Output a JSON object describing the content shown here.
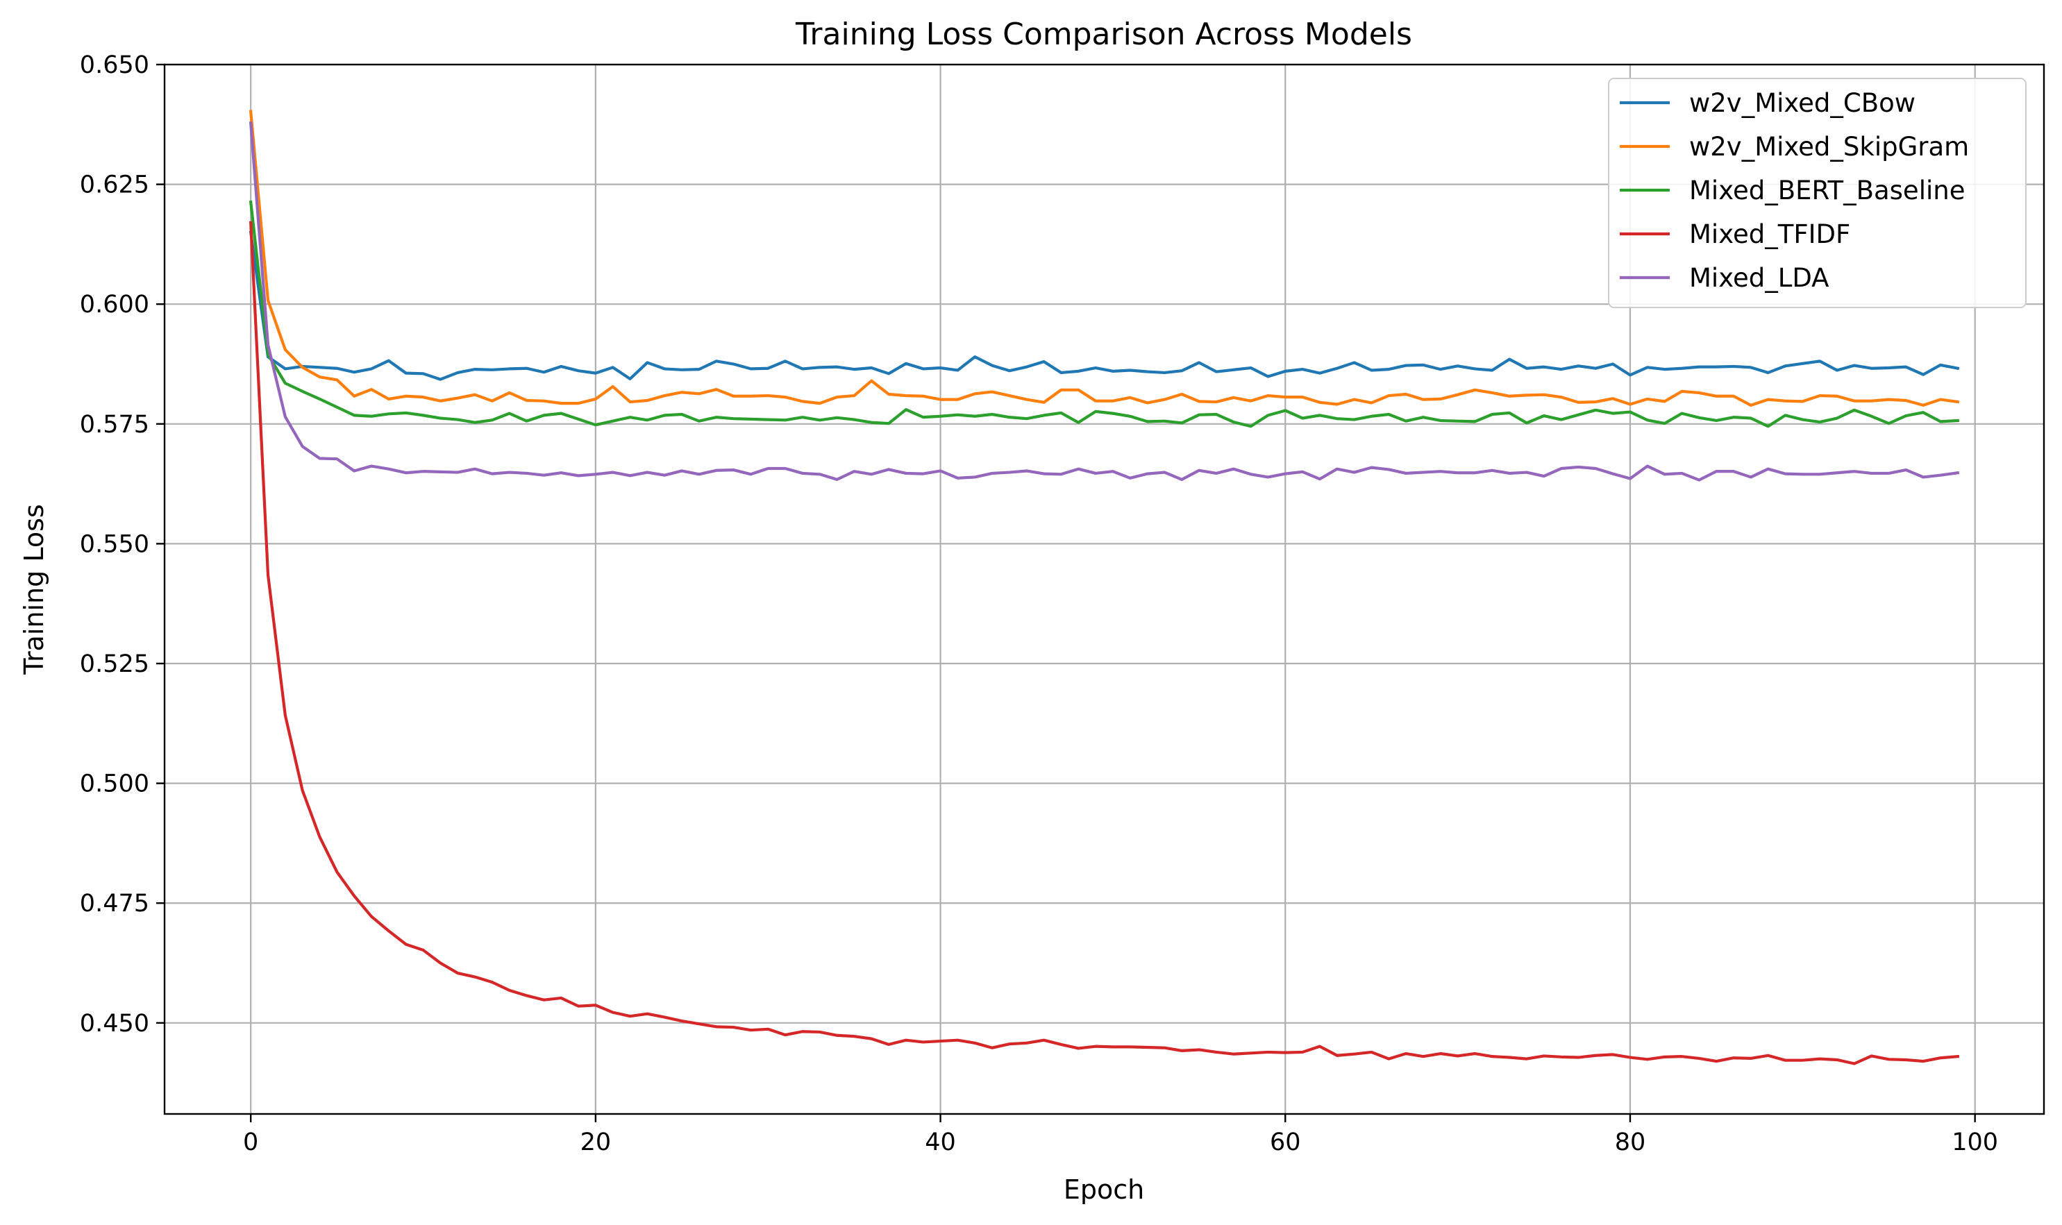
{
  "chart_data": {
    "type": "line",
    "title": "Training Loss Comparison Across Models",
    "xlabel": "Epoch",
    "ylabel": "Training Loss",
    "xlim": [
      -5,
      104
    ],
    "ylim": [
      0.431,
      0.65
    ],
    "xticks": [
      0,
      20,
      40,
      60,
      80,
      100
    ],
    "xtick_labels": [
      "0",
      "20",
      "40",
      "60",
      "80",
      "100"
    ],
    "yticks": [
      0.45,
      0.475,
      0.5,
      0.525,
      0.55,
      0.575,
      0.6,
      0.625,
      0.65
    ],
    "ytick_labels": [
      "0.450",
      "0.475",
      "0.500",
      "0.525",
      "0.550",
      "0.575",
      "0.600",
      "0.625",
      "0.650"
    ],
    "grid": true,
    "legend_position": "top-right",
    "series": [
      {
        "name": "w2v_Mixed_CBow",
        "color": "#1f77b4",
        "values": [
          0.615,
          0.589,
          0.5865,
          0.587,
          0.5868,
          0.5866,
          0.5858,
          0.5865,
          0.5882,
          0.5856,
          0.5855,
          0.5843,
          0.5857,
          0.5864,
          0.5863,
          0.5865,
          0.5866,
          0.5858,
          0.587,
          0.5861,
          0.5856,
          0.5868,
          0.5844,
          0.5878,
          0.5865,
          0.5863,
          0.5864,
          0.5881,
          0.5875,
          0.5865,
          0.5866,
          0.5881,
          0.5865,
          0.5868,
          0.5869,
          0.5864,
          0.5867,
          0.5855,
          0.5876,
          0.5865,
          0.5867,
          0.5862,
          0.589,
          0.5872,
          0.5861,
          0.5869,
          0.588,
          0.5857,
          0.586,
          0.5867,
          0.586,
          0.5862,
          0.5859,
          0.5857,
          0.5861,
          0.5878,
          0.5859,
          0.5863,
          0.5867,
          0.5849,
          0.586,
          0.5864,
          0.5856,
          0.5866,
          0.5878,
          0.5862,
          0.5864,
          0.5872,
          0.5873,
          0.5864,
          0.5871,
          0.5865,
          0.5862,
          0.5885,
          0.5866,
          0.5869,
          0.5864,
          0.5871,
          0.5866,
          0.5875,
          0.5852,
          0.5868,
          0.5864,
          0.5866,
          0.5869,
          0.5869,
          0.587,
          0.5868,
          0.5857,
          0.5871,
          0.5876,
          0.5881,
          0.5862,
          0.5872,
          0.5866,
          0.5867,
          0.5869,
          0.5853,
          0.5873,
          0.5866
        ]
      },
      {
        "name": "w2v_Mixed_SkipGram",
        "color": "#ff7f0e",
        "values": [
          0.6402,
          0.6008,
          0.5905,
          0.5868,
          0.5848,
          0.5842,
          0.5808,
          0.5822,
          0.5802,
          0.5808,
          0.5806,
          0.5798,
          0.5804,
          0.5811,
          0.5798,
          0.5815,
          0.5799,
          0.5798,
          0.5793,
          0.5793,
          0.5802,
          0.5828,
          0.5796,
          0.5799,
          0.5809,
          0.5816,
          0.5813,
          0.5822,
          0.5808,
          0.5808,
          0.5809,
          0.5806,
          0.5797,
          0.5793,
          0.5806,
          0.5809,
          0.584,
          0.5812,
          0.5809,
          0.5808,
          0.5801,
          0.5801,
          0.5813,
          0.5817,
          0.5809,
          0.5801,
          0.5795,
          0.5821,
          0.5821,
          0.5798,
          0.5798,
          0.5805,
          0.5794,
          0.5801,
          0.5812,
          0.5797,
          0.5796,
          0.5805,
          0.5798,
          0.5809,
          0.5806,
          0.5806,
          0.5795,
          0.5791,
          0.5801,
          0.5794,
          0.5809,
          0.5812,
          0.5801,
          0.5802,
          0.5811,
          0.5821,
          0.5815,
          0.5808,
          0.581,
          0.5811,
          0.5806,
          0.5795,
          0.5796,
          0.5803,
          0.5791,
          0.5802,
          0.5797,
          0.5818,
          0.5815,
          0.5808,
          0.5808,
          0.5789,
          0.5801,
          0.5798,
          0.5797,
          0.5809,
          0.5808,
          0.5798,
          0.5798,
          0.5801,
          0.5799,
          0.5789,
          0.5801,
          0.5796
        ]
      },
      {
        "name": "Mixed_BERT_Baseline",
        "color": "#2ca02c",
        "values": [
          0.6213,
          0.5895,
          0.5835,
          0.5818,
          0.5802,
          0.5785,
          0.5768,
          0.5766,
          0.5771,
          0.5773,
          0.5768,
          0.5762,
          0.5759,
          0.5753,
          0.5758,
          0.5772,
          0.5756,
          0.5768,
          0.5772,
          0.576,
          0.5748,
          0.5756,
          0.5764,
          0.5758,
          0.5768,
          0.577,
          0.5756,
          0.5764,
          0.5761,
          0.576,
          0.5759,
          0.5758,
          0.5764,
          0.5758,
          0.5763,
          0.5759,
          0.5753,
          0.5751,
          0.578,
          0.5764,
          0.5766,
          0.5769,
          0.5766,
          0.577,
          0.5764,
          0.5761,
          0.5768,
          0.5773,
          0.5753,
          0.5776,
          0.5772,
          0.5766,
          0.5755,
          0.5756,
          0.5752,
          0.5769,
          0.577,
          0.5754,
          0.5745,
          0.5768,
          0.5778,
          0.5762,
          0.5768,
          0.5761,
          0.5759,
          0.5766,
          0.577,
          0.5756,
          0.5764,
          0.5757,
          0.5756,
          0.5755,
          0.577,
          0.5773,
          0.5752,
          0.5767,
          0.5759,
          0.5769,
          0.5779,
          0.5772,
          0.5775,
          0.5758,
          0.5751,
          0.5772,
          0.5763,
          0.5757,
          0.5764,
          0.5762,
          0.5745,
          0.5768,
          0.5759,
          0.5754,
          0.5762,
          0.5779,
          0.5766,
          0.5751,
          0.5767,
          0.5774,
          0.5755,
          0.5757
        ]
      },
      {
        "name": "Mixed_TFIDF",
        "color": "#d62728",
        "values": [
          0.617,
          0.5435,
          0.5142,
          0.4985,
          0.4888,
          0.4815,
          0.4765,
          0.4722,
          0.4692,
          0.4664,
          0.4652,
          0.4625,
          0.4604,
          0.4596,
          0.4585,
          0.4568,
          0.4557,
          0.4548,
          0.4552,
          0.4535,
          0.4537,
          0.4522,
          0.4514,
          0.4519,
          0.4512,
          0.4504,
          0.4498,
          0.4492,
          0.4491,
          0.4485,
          0.4487,
          0.4475,
          0.4482,
          0.4481,
          0.4474,
          0.4472,
          0.4467,
          0.4455,
          0.4464,
          0.446,
          0.4462,
          0.4464,
          0.4458,
          0.4448,
          0.4456,
          0.4458,
          0.4464,
          0.4455,
          0.4447,
          0.4451,
          0.445,
          0.445,
          0.4449,
          0.4448,
          0.4442,
          0.4444,
          0.4439,
          0.4435,
          0.4437,
          0.4439,
          0.4438,
          0.4439,
          0.4451,
          0.4432,
          0.4435,
          0.4439,
          0.4425,
          0.4436,
          0.443,
          0.4436,
          0.4431,
          0.4436,
          0.443,
          0.4428,
          0.4425,
          0.4431,
          0.4429,
          0.4428,
          0.4432,
          0.4434,
          0.4428,
          0.4424,
          0.4429,
          0.443,
          0.4426,
          0.442,
          0.4427,
          0.4426,
          0.4432,
          0.4422,
          0.4422,
          0.4425,
          0.4423,
          0.4415,
          0.4431,
          0.4424,
          0.4423,
          0.442,
          0.4427,
          0.443
        ]
      },
      {
        "name": "Mixed_LDA",
        "color": "#9467bd",
        "values": [
          0.6378,
          0.5915,
          0.5765,
          0.5703,
          0.5678,
          0.5677,
          0.5652,
          0.5662,
          0.5656,
          0.5648,
          0.5651,
          0.565,
          0.5649,
          0.5656,
          0.5646,
          0.5649,
          0.5647,
          0.5643,
          0.5648,
          0.5642,
          0.5645,
          0.5649,
          0.5642,
          0.5649,
          0.5643,
          0.5652,
          0.5645,
          0.5653,
          0.5654,
          0.5645,
          0.5657,
          0.5657,
          0.5647,
          0.5645,
          0.5634,
          0.5651,
          0.5645,
          0.5655,
          0.5647,
          0.5646,
          0.5652,
          0.5637,
          0.5639,
          0.5647,
          0.5649,
          0.5652,
          0.5646,
          0.5645,
          0.5656,
          0.5647,
          0.5651,
          0.5637,
          0.5646,
          0.5649,
          0.5634,
          0.5653,
          0.5647,
          0.5656,
          0.5645,
          0.5639,
          0.5646,
          0.565,
          0.5635,
          0.5656,
          0.5649,
          0.5659,
          0.5655,
          0.5647,
          0.5649,
          0.5651,
          0.5648,
          0.5648,
          0.5653,
          0.5647,
          0.5649,
          0.5641,
          0.5657,
          0.566,
          0.5657,
          0.5646,
          0.5636,
          0.5662,
          0.5645,
          0.5647,
          0.5633,
          0.5651,
          0.5651,
          0.5639,
          0.5656,
          0.5646,
          0.5645,
          0.5645,
          0.5648,
          0.5651,
          0.5647,
          0.5647,
          0.5654,
          0.5639,
          0.5643,
          0.5648
        ]
      }
    ]
  }
}
